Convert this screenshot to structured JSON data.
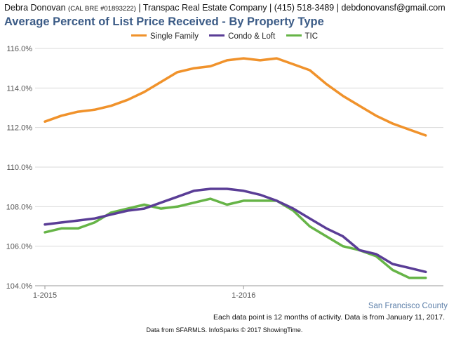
{
  "header": {
    "agent_name": "Debra Donovan",
    "license": "(CAL BRE #01893222)",
    "company": "| Transpac Real Estate Company |",
    "phone": "(415) 518-3489",
    "email": "| debdonovansf@gmail.com"
  },
  "colors": {
    "title": "#3b5b86",
    "single_family": "#f0922b",
    "condo_loft": "#5a3d96",
    "tic": "#66b447",
    "grid": "#d9d9d9",
    "axis_text": "#555555"
  },
  "chart_data": {
    "type": "line",
    "title": "Average Percent of List Price Received - By Property Type",
    "xlabel": "",
    "ylabel": "",
    "ylim": [
      104.0,
      116.0
    ],
    "yticks": [
      "104.0%",
      "106.0%",
      "108.0%",
      "110.0%",
      "112.0%",
      "114.0%",
      "116.0%"
    ],
    "ytick_values": [
      104,
      106,
      108,
      110,
      112,
      114,
      116
    ],
    "x": [
      "1-2015",
      "2-2015",
      "3-2015",
      "4-2015",
      "5-2015",
      "6-2015",
      "7-2015",
      "8-2015",
      "9-2015",
      "10-2015",
      "11-2015",
      "12-2015",
      "1-2016",
      "2-2016",
      "3-2016",
      "4-2016",
      "5-2016",
      "6-2016",
      "7-2016",
      "8-2016",
      "9-2016",
      "10-2016",
      "11-2016",
      "12-2016"
    ],
    "xtick_labels": [
      "1-2015",
      "1-2016"
    ],
    "xtick_index": [
      0,
      12
    ],
    "legend_position": "top-center",
    "grid": true,
    "series": [
      {
        "name": "Single Family",
        "color": "#f0922b",
        "values": [
          112.3,
          112.6,
          112.8,
          112.9,
          113.1,
          113.4,
          113.8,
          114.3,
          114.8,
          115.0,
          115.1,
          115.4,
          115.5,
          115.4,
          115.5,
          115.2,
          114.9,
          114.2,
          113.6,
          113.1,
          112.6,
          112.2,
          111.9,
          111.6
        ]
      },
      {
        "name": "Condo & Loft",
        "color": "#5a3d96",
        "values": [
          107.1,
          107.2,
          107.3,
          107.4,
          107.6,
          107.8,
          107.9,
          108.2,
          108.5,
          108.8,
          108.9,
          108.9,
          108.8,
          108.6,
          108.3,
          107.9,
          107.4,
          106.9,
          106.5,
          105.8,
          105.6,
          105.1,
          104.9,
          104.7
        ]
      },
      {
        "name": "TIC",
        "color": "#66b447",
        "values": [
          106.7,
          106.9,
          106.9,
          107.2,
          107.7,
          107.9,
          108.1,
          107.9,
          108.0,
          108.2,
          108.4,
          108.1,
          108.3,
          108.3,
          108.3,
          107.8,
          107.0,
          106.5,
          106.0,
          105.8,
          105.5,
          104.8,
          104.4,
          104.4
        ]
      }
    ]
  },
  "region_label": "San Francisco County",
  "footnote": "Each data point is 12 months of activity. Data is from January 11, 2017.",
  "source": "Data from SFARMLS. InfoSparks © 2017 ShowingTime."
}
